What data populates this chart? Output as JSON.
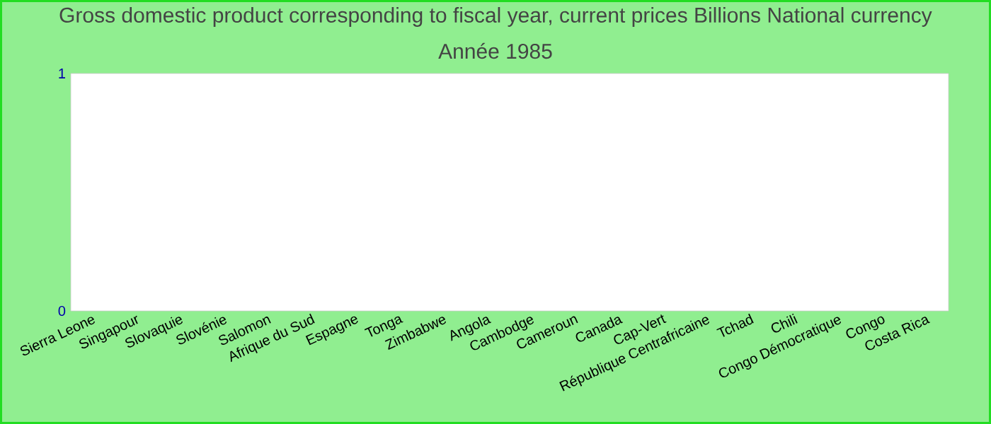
{
  "chart_data": {
    "type": "bar",
    "title": "Gross domestic product corresponding to fiscal year, current prices Billions National currency",
    "subtitle": "Année 1985",
    "categories": [
      "Sierra Leone",
      "Singapour",
      "Slovaquie",
      "Slovénie",
      "Salomon",
      "Afrique du Sud",
      "Espagne",
      "Tonga",
      "Zimbabwe",
      "Angola",
      "Cambodge",
      "Cameroun",
      "Canada",
      "Cap-Vert",
      "République Centrafricaine",
      "Tchad",
      "Chili",
      "Congo Démocratique",
      "Congo",
      "Costa Rica"
    ],
    "values": [
      null,
      null,
      null,
      null,
      null,
      null,
      null,
      null,
      null,
      null,
      null,
      null,
      null,
      null,
      null,
      null,
      null,
      null,
      null,
      null
    ],
    "ylim": [
      0,
      1
    ],
    "yticks": [
      0,
      1
    ],
    "grid": false
  }
}
